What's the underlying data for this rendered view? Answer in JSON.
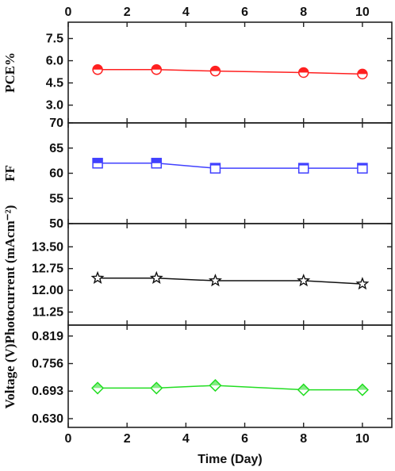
{
  "chart_data": [
    {
      "type": "line",
      "ylabel": "PCE%",
      "x": [
        1,
        3,
        5,
        8,
        10
      ],
      "series": [
        {
          "values": [
            5.4,
            5.4,
            5.3,
            5.2,
            5.1
          ],
          "color": "#ff2020",
          "marker": "circle-half"
        }
      ],
      "ylim": [
        1.8,
        8.6
      ],
      "yticks": [
        "3.0",
        "4.5",
        "6.0",
        "7.5"
      ],
      "xlim": [
        0,
        11
      ]
    },
    {
      "type": "line",
      "ylabel": "FF",
      "x": [
        1,
        3,
        5,
        8,
        10
      ],
      "series": [
        {
          "values": [
            62,
            62,
            61,
            61,
            61
          ],
          "color": "#4040ff",
          "marker": "square-half"
        }
      ],
      "ylim": [
        50,
        70
      ],
      "yticks": [
        "50",
        "55",
        "60",
        "65",
        "70"
      ],
      "xlim": [
        0,
        11
      ]
    },
    {
      "type": "line",
      "ylabel": "Photocurrent (mAcm⁻²)",
      "x": [
        1,
        3,
        5,
        8,
        10
      ],
      "series": [
        {
          "values": [
            12.42,
            12.42,
            12.33,
            12.33,
            12.22
          ],
          "color": "#111111",
          "marker": "star"
        }
      ],
      "ylim": [
        10.8,
        14.3
      ],
      "yticks": [
        "11.25",
        "12.00",
        "12.75",
        "13.50"
      ],
      "xlim": [
        0,
        11
      ]
    },
    {
      "type": "line",
      "ylabel": "Voltage (V)",
      "x": [
        1,
        3,
        5,
        8,
        10
      ],
      "series": [
        {
          "values": [
            0.7,
            0.7,
            0.706,
            0.696,
            0.696
          ],
          "color": "#22dd22",
          "marker": "diamond"
        }
      ],
      "ylim": [
        0.61,
        0.844
      ],
      "yticks": [
        "0.630",
        "0.693",
        "0.756",
        "0.819"
      ],
      "xlim": [
        0,
        11
      ]
    }
  ],
  "x_axis": {
    "label": "Time (Day)",
    "ticks": [
      "0",
      "2",
      "4",
      "6",
      "8",
      "10"
    ],
    "tick_values": [
      0,
      2,
      4,
      6,
      8,
      10
    ]
  }
}
